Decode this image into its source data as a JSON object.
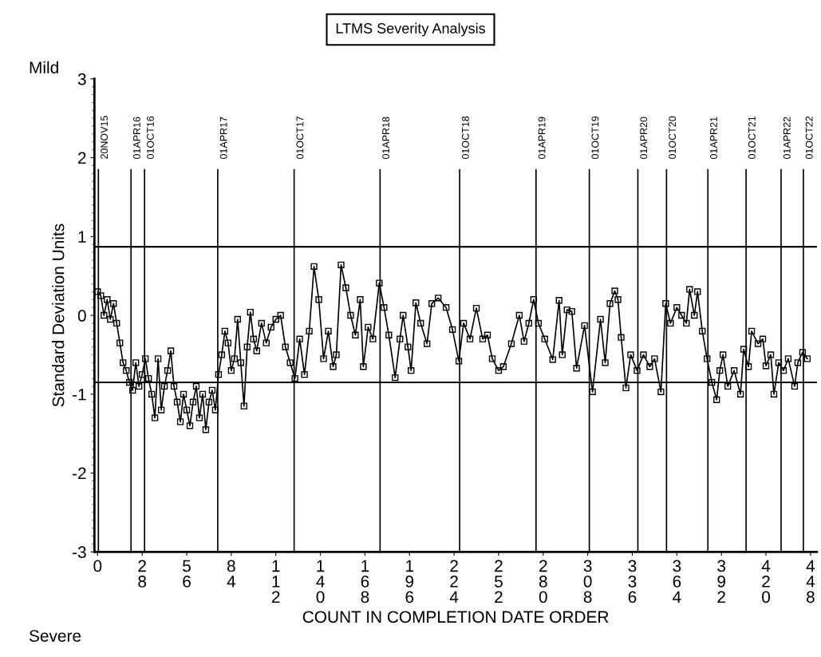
{
  "chart_data": {
    "type": "line",
    "title": "LTMS Severity Analysis",
    "xlabel": "COUNT IN COMPLETION DATE ORDER",
    "ylabel": "Standard Deviation Units",
    "annotations": [
      "Mild",
      "Severe"
    ],
    "marker": "square",
    "line_style": "solid",
    "grid": false,
    "legend": false,
    "xlim": [
      -2,
      452
    ],
    "ylim": [
      -3,
      3
    ],
    "yticks": [
      -3,
      -2,
      -1,
      0,
      1,
      2,
      3
    ],
    "xticks": [
      0,
      28,
      56,
      84,
      112,
      140,
      168,
      196,
      224,
      252,
      280,
      308,
      336,
      364,
      392,
      420,
      448
    ],
    "ref_lines": [
      {
        "axis": "y",
        "value": 0.87
      },
      {
        "axis": "y",
        "value": -0.85
      },
      {
        "axis": "x",
        "value": 0.5,
        "label": "20NOV15"
      },
      {
        "axis": "x",
        "value": 21,
        "label": "01APR16"
      },
      {
        "axis": "x",
        "value": 29.5,
        "label": "01OCT16"
      },
      {
        "axis": "x",
        "value": 75.5,
        "label": "01APR17"
      },
      {
        "axis": "x",
        "value": 123.5,
        "label": "01OCT17"
      },
      {
        "axis": "x",
        "value": 177.5,
        "label": "01APR18"
      },
      {
        "axis": "x",
        "value": 227.5,
        "label": "01OCT18"
      },
      {
        "axis": "x",
        "value": 275.5,
        "label": "01APR19"
      },
      {
        "axis": "x",
        "value": 309,
        "label": "01OCT19"
      },
      {
        "axis": "x",
        "value": 339.5,
        "label": "01APR20"
      },
      {
        "axis": "x",
        "value": 357.5,
        "label": "01OCT20"
      },
      {
        "axis": "x",
        "value": 383.5,
        "label": "01APR21"
      },
      {
        "axis": "x",
        "value": 407.5,
        "label": "01OCT21"
      },
      {
        "axis": "x",
        "value": 429.5,
        "label": "01APR22"
      },
      {
        "axis": "x",
        "value": 443.5,
        "label": "01OCT22"
      }
    ],
    "series": [
      {
        "color": "#000000",
        "x": [
          0,
          2,
          4,
          6,
          8,
          10,
          12,
          14,
          16,
          18,
          20,
          22,
          24,
          26,
          28,
          30,
          32,
          34,
          36,
          38,
          40,
          42,
          44,
          46,
          48,
          50,
          52,
          54,
          56,
          58,
          60,
          62,
          64,
          66,
          68,
          70,
          72,
          74,
          76,
          78,
          80,
          82,
          84,
          86,
          88,
          90,
          92,
          94,
          96,
          98,
          100,
          103,
          106,
          109,
          112,
          115,
          118,
          121,
          124,
          127,
          130,
          133,
          136,
          139,
          142,
          145,
          148,
          150,
          153,
          156,
          159,
          162,
          165,
          167,
          170,
          173,
          177,
          180,
          183,
          187,
          190,
          192,
          195,
          197,
          200,
          203,
          207,
          210,
          214,
          219,
          223,
          227,
          230,
          234,
          238,
          242,
          245,
          248,
          252,
          255,
          260,
          265,
          268,
          271,
          274,
          277,
          281,
          286,
          290,
          292,
          295,
          298,
          301,
          306,
          311,
          316,
          319,
          322,
          325,
          327,
          329,
          332,
          335,
          339,
          343,
          347,
          350,
          354,
          357,
          360,
          364,
          367,
          370,
          372,
          375,
          377,
          380,
          383,
          386,
          389,
          391,
          393,
          396,
          400,
          404,
          406,
          409,
          411,
          415,
          418,
          420,
          423,
          425,
          428,
          431,
          434,
          438,
          440,
          443,
          446
        ],
        "values": [
          0.3,
          0.25,
          0.0,
          0.2,
          -0.05,
          0.15,
          -0.1,
          -0.35,
          -0.6,
          -0.7,
          -0.85,
          -0.95,
          -0.6,
          -0.9,
          -0.75,
          -0.55,
          -0.8,
          -1.0,
          -1.3,
          -0.55,
          -1.2,
          -0.9,
          -0.7,
          -0.45,
          -0.9,
          -1.1,
          -1.35,
          -1.0,
          -1.2,
          -1.4,
          -1.1,
          -0.9,
          -1.3,
          -1.0,
          -1.45,
          -1.1,
          -0.95,
          -1.2,
          -0.75,
          -0.5,
          -0.2,
          -0.35,
          -0.7,
          -0.55,
          -0.05,
          -0.6,
          -1.15,
          -0.4,
          0.04,
          -0.3,
          -0.45,
          -0.1,
          -0.35,
          -0.15,
          -0.05,
          0.0,
          -0.4,
          -0.6,
          -0.8,
          -0.3,
          -0.75,
          -0.2,
          0.62,
          0.2,
          -0.55,
          -0.2,
          -0.65,
          -0.5,
          0.64,
          0.35,
          0.0,
          -0.25,
          0.2,
          -0.65,
          -0.15,
          -0.3,
          0.41,
          0.1,
          -0.25,
          -0.79,
          -0.3,
          0.0,
          -0.4,
          -0.7,
          0.16,
          -0.1,
          -0.36,
          0.15,
          0.22,
          0.1,
          -0.18,
          -0.58,
          -0.1,
          -0.3,
          0.09,
          -0.3,
          -0.25,
          -0.55,
          -0.7,
          -0.65,
          -0.36,
          0.0,
          -0.33,
          -0.1,
          0.2,
          -0.1,
          -0.3,
          -0.56,
          0.19,
          -0.5,
          0.07,
          0.05,
          -0.67,
          -0.13,
          -0.97,
          -0.05,
          -0.6,
          0.15,
          0.31,
          0.2,
          -0.28,
          -0.92,
          -0.5,
          -0.7,
          -0.5,
          -0.65,
          -0.55,
          -0.97,
          0.15,
          -0.1,
          0.1,
          0.0,
          -0.1,
          0.33,
          0.0,
          0.3,
          -0.2,
          -0.55,
          -0.85,
          -1.07,
          -0.7,
          -0.5,
          -0.9,
          -0.7,
          -1.0,
          -0.43,
          -0.65,
          -0.2,
          -0.36,
          -0.3,
          -0.64,
          -0.5,
          -1.0,
          -0.6,
          -0.7,
          -0.55,
          -0.9,
          -0.6,
          -0.47,
          -0.55
        ]
      }
    ]
  }
}
